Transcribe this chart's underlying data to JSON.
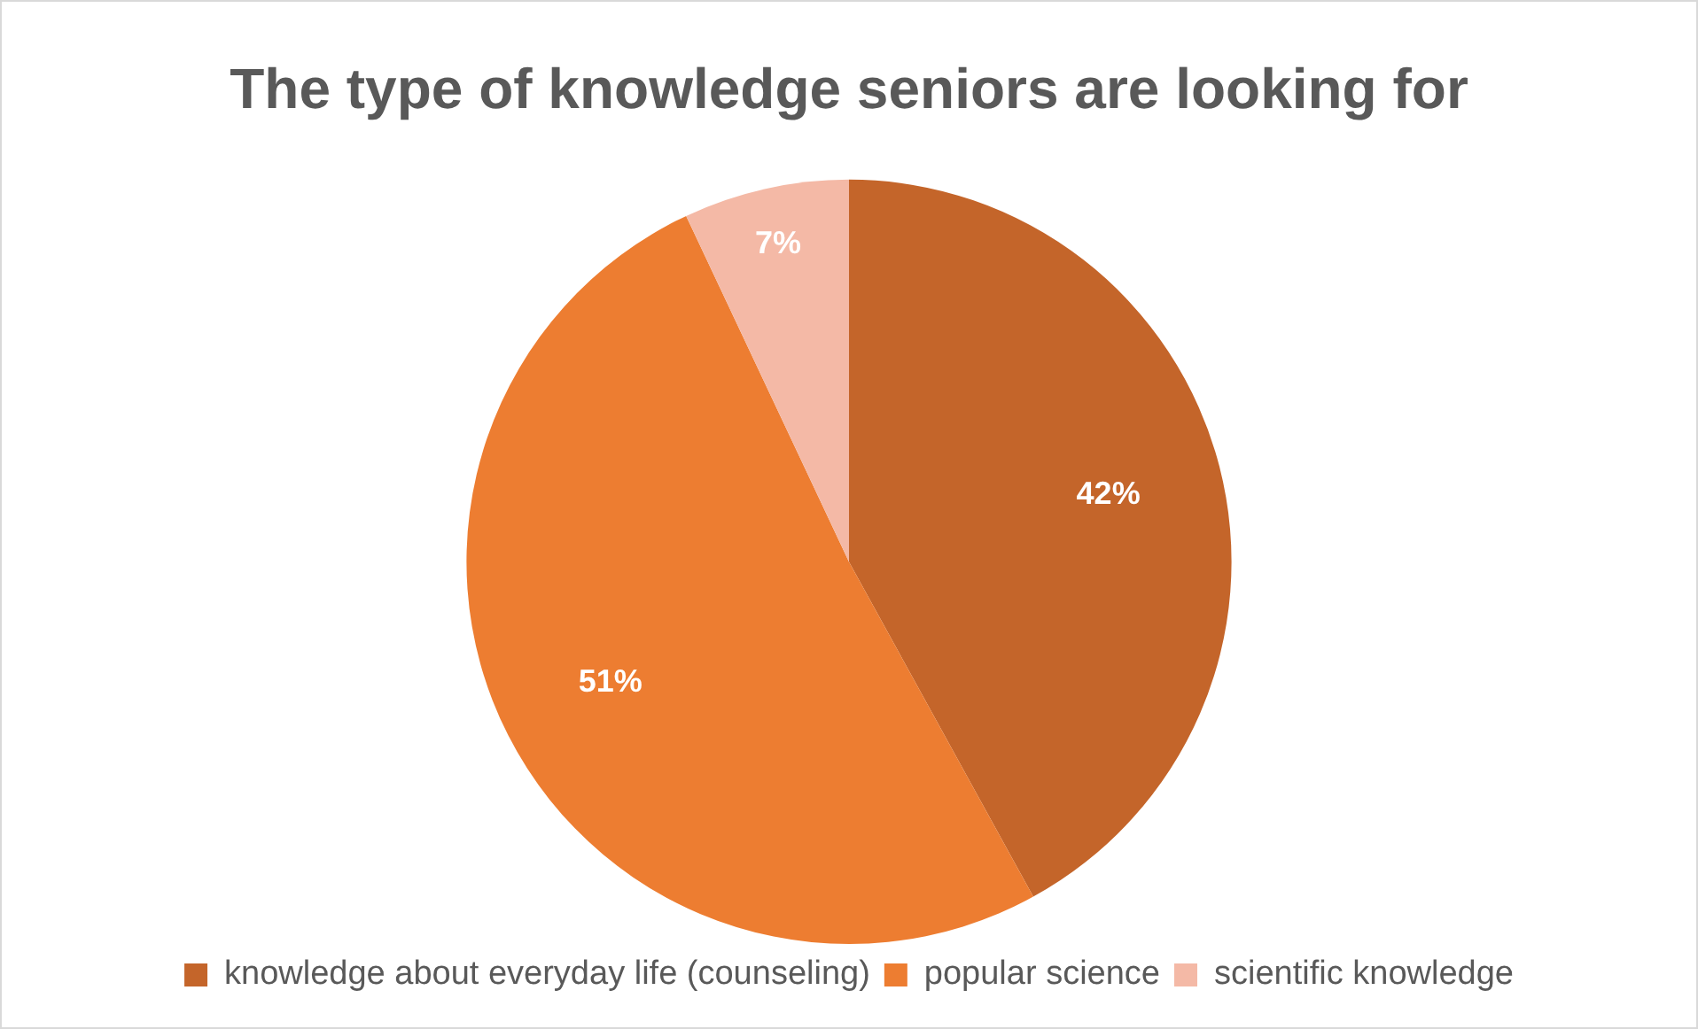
{
  "chart_data": {
    "type": "pie",
    "title": "The type of knowledge seniors are looking for",
    "categories": [
      "knowledge about everyday life (counseling)",
      "popular science",
      "scientific knowledge"
    ],
    "values": [
      42,
      51,
      7
    ],
    "colors": [
      "#c4652a",
      "#ed7d31",
      "#f4b9a6"
    ],
    "value_labels": [
      "42%",
      "51%",
      "7%"
    ],
    "legend": "bottom"
  }
}
